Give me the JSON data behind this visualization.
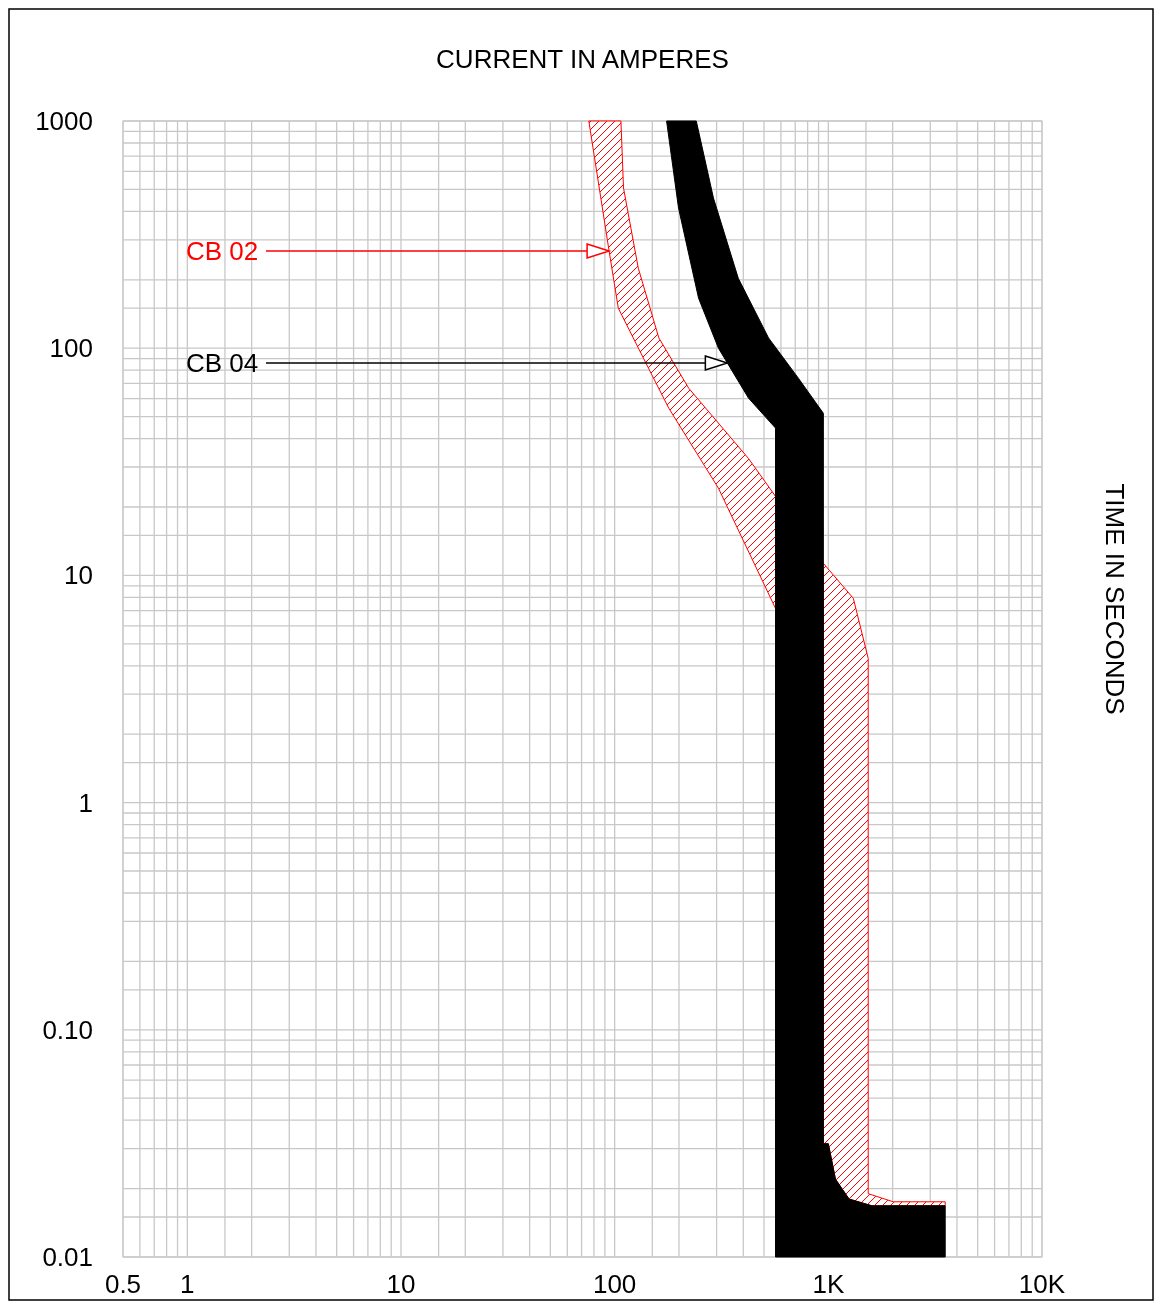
{
  "chart_data": {
    "type": "area",
    "xlabel": "CURRENT IN AMPERES",
    "ylabel": "TIME IN SECONDS",
    "log": "xy",
    "grid": true,
    "xlim": [
      0.5,
      10000
    ],
    "xticks": [
      0.5,
      1,
      10,
      100,
      {
        "value": 1000,
        "label": "1K"
      },
      {
        "value": 10000,
        "label": "10K"
      }
    ],
    "ylim": [
      0.01,
      1000
    ],
    "yticks": [
      {
        "value": 0.01,
        "label": "0.01"
      },
      {
        "value": 0.1,
        "label": "0.10"
      },
      1,
      10,
      100,
      1000
    ],
    "series": [
      {
        "name": "CB 02",
        "color": "#ff0000",
        "x": [
          75.7,
          93.7,
          104,
          144,
          179,
          306,
          566,
          948,
          948,
          1000,
          1080,
          1250,
          1600,
          3523,
          3523,
          2013,
          1537,
          1537,
          1309,
          948,
          423,
          222,
          161,
          129,
          110,
          107
        ],
        "values": [
          1000,
          276,
          150,
          81.7,
          54.5,
          24.2,
          7.16,
          10.5,
          0.0315,
          0.0315,
          0.022,
          0.018,
          0.0168,
          0.0168,
          0.0175,
          0.0175,
          0.019,
          4.31,
          7.93,
          11.3,
          32.7,
          66.7,
          111,
          225,
          507,
          1000
        ]
      },
      {
        "name": "CB 04",
        "color": "#000000",
        "x": [
          175,
          199,
          247,
          306,
          423,
          566,
          566,
          3523,
          3523,
          1600,
          1250,
          1080,
          1000,
          948,
          948,
          724,
          525,
          379,
          290,
          241
        ],
        "values": [
          1000,
          414,
          166,
          100,
          60.3,
          44.5,
          0.01,
          0.01,
          0.0168,
          0.0168,
          0.018,
          0.022,
          0.0315,
          0.0315,
          51.7,
          73.8,
          111,
          203,
          458,
          1000
        ]
      }
    ]
  }
}
